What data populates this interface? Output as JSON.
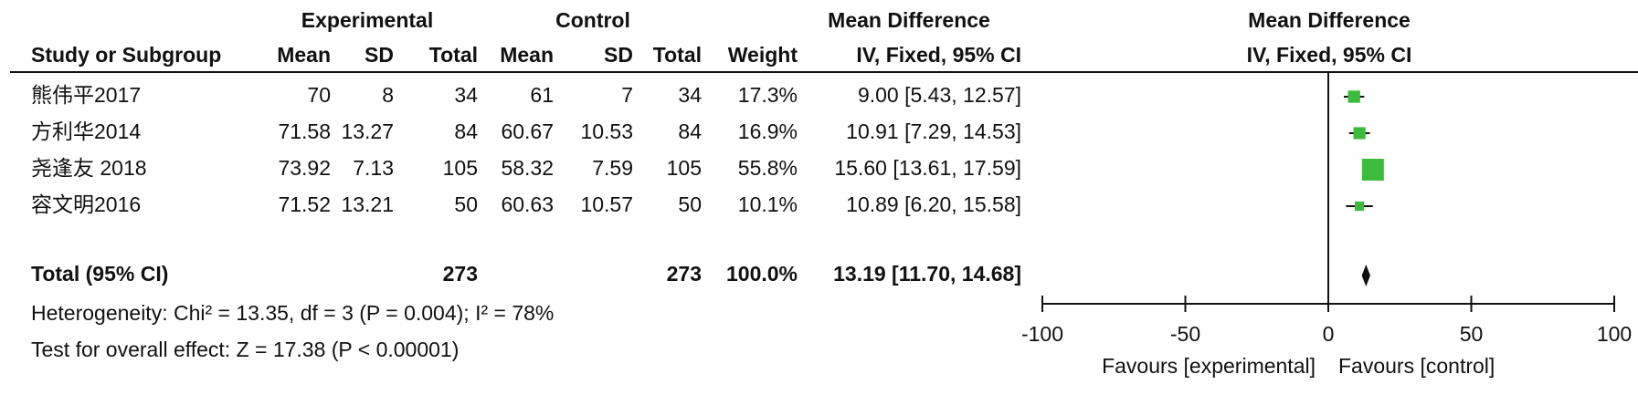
{
  "chart_data": {
    "type": "forest",
    "group_headers": [
      "Experimental",
      "Control",
      "Mean Difference",
      "Mean Difference"
    ],
    "columns": [
      "Study or Subgroup",
      "Mean",
      "SD",
      "Total",
      "Mean",
      "SD",
      "Total",
      "Weight",
      "IV, Fixed, 95% CI",
      "IV, Fixed, 95% CI"
    ],
    "studies": [
      {
        "name": "熊伟平2017",
        "exp_mean": 70,
        "exp_sd": 8,
        "exp_total": 34,
        "ctl_mean": 61,
        "ctl_sd": 7,
        "ctl_total": 34,
        "weight": 17.3,
        "weight_label": "17.3%",
        "md": 9.0,
        "ci": [
          5.43,
          12.57
        ],
        "ci_label": "9.00 [5.43, 12.57]"
      },
      {
        "name": "方利华2014",
        "exp_mean": 71.58,
        "exp_sd": 13.27,
        "exp_total": 84,
        "ctl_mean": 60.67,
        "ctl_sd": 10.53,
        "ctl_total": 84,
        "weight": 16.9,
        "weight_label": "16.9%",
        "md": 10.91,
        "ci": [
          7.29,
          14.53
        ],
        "ci_label": "10.91 [7.29, 14.53]"
      },
      {
        "name": "尧逢友 2018",
        "exp_mean": 73.92,
        "exp_sd": 7.13,
        "exp_total": 105,
        "ctl_mean": 58.32,
        "ctl_sd": 7.59,
        "ctl_total": 105,
        "weight": 55.8,
        "weight_label": "55.8%",
        "md": 15.6,
        "ci": [
          13.61,
          17.59
        ],
        "ci_label": "15.60 [13.61, 17.59]"
      },
      {
        "name": "容文明2016",
        "exp_mean": 71.52,
        "exp_sd": 13.21,
        "exp_total": 50,
        "ctl_mean": 60.63,
        "ctl_sd": 10.57,
        "ctl_total": 50,
        "weight": 10.1,
        "weight_label": "10.1%",
        "md": 10.89,
        "ci": [
          6.2,
          15.58
        ],
        "ci_label": "10.89 [6.20, 15.58]"
      }
    ],
    "total": {
      "name": "Total (95% CI)",
      "exp_total": 273,
      "ctl_total": 273,
      "weight": 100,
      "weight_label": "100.0%",
      "md": 13.19,
      "ci": [
        11.7,
        14.68
      ],
      "ci_label": "13.19 [11.70, 14.68]"
    },
    "heterogeneity": "Heterogeneity: Chi² = 13.35, df = 3 (P = 0.004); I² = 78%",
    "overall_effect": "Test for overall effect: Z = 17.38 (P < 0.00001)",
    "xlim": [
      -100,
      100
    ],
    "xticks": [
      -100,
      -50,
      0,
      50,
      100
    ],
    "x_labels": [
      "Favours [experimental]",
      "Favours [control]"
    ],
    "color": "#3dbb3d"
  }
}
